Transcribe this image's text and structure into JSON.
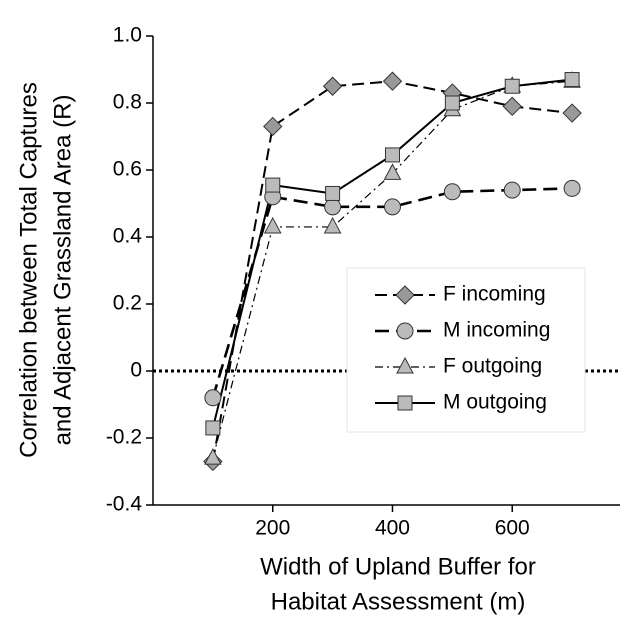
{
  "chart_data": {
    "type": "line",
    "x": [
      100,
      200,
      300,
      400,
      500,
      600,
      700
    ],
    "xlabel": [
      "Width of Upland Buffer for",
      "Habitat Assessment (m)"
    ],
    "ylabel": [
      "Correlation between Total Captures",
      "and Adjacent Grassland Area (R)"
    ],
    "xlim": [
      0,
      780
    ],
    "xticks": [
      200,
      400,
      600
    ],
    "ylim": [
      -0.4,
      1.0
    ],
    "yticks": [
      -0.4,
      -0.2,
      0,
      0.2,
      0.4,
      0.6,
      0.8,
      {
        "value": 1,
        "label": "1.0"
      }
    ],
    "reference_line": 0,
    "legend": "right",
    "series": [
      {
        "name": "F incoming",
        "color": "#000000",
        "marker_color": "#999999",
        "marker": "diamond",
        "dash": "12 6",
        "width": 2,
        "values": [
          -0.27,
          0.73,
          0.85,
          0.865,
          0.83,
          0.79,
          0.77
        ]
      },
      {
        "name": "M incoming",
        "color": "#000000",
        "marker_color": "#bbbbbb",
        "marker": "circle",
        "dash": "14 7",
        "width": 2.6,
        "values": [
          -0.08,
          0.52,
          0.49,
          0.49,
          0.535,
          0.54,
          0.545
        ]
      },
      {
        "name": "F outgoing",
        "color": "#000000",
        "marker_color": "#bbbbbb",
        "marker": "triangle",
        "dash": "8 4 2 4",
        "width": 1.2,
        "values": [
          -0.26,
          0.43,
          0.43,
          0.59,
          0.78,
          0.85,
          0.865
        ]
      },
      {
        "name": "M outgoing",
        "color": "#000000",
        "marker_color": "#bbbbbb",
        "marker": "square",
        "dash": "",
        "width": 2,
        "values": [
          -0.17,
          0.555,
          0.53,
          0.645,
          0.8,
          0.85,
          0.87
        ]
      }
    ]
  }
}
